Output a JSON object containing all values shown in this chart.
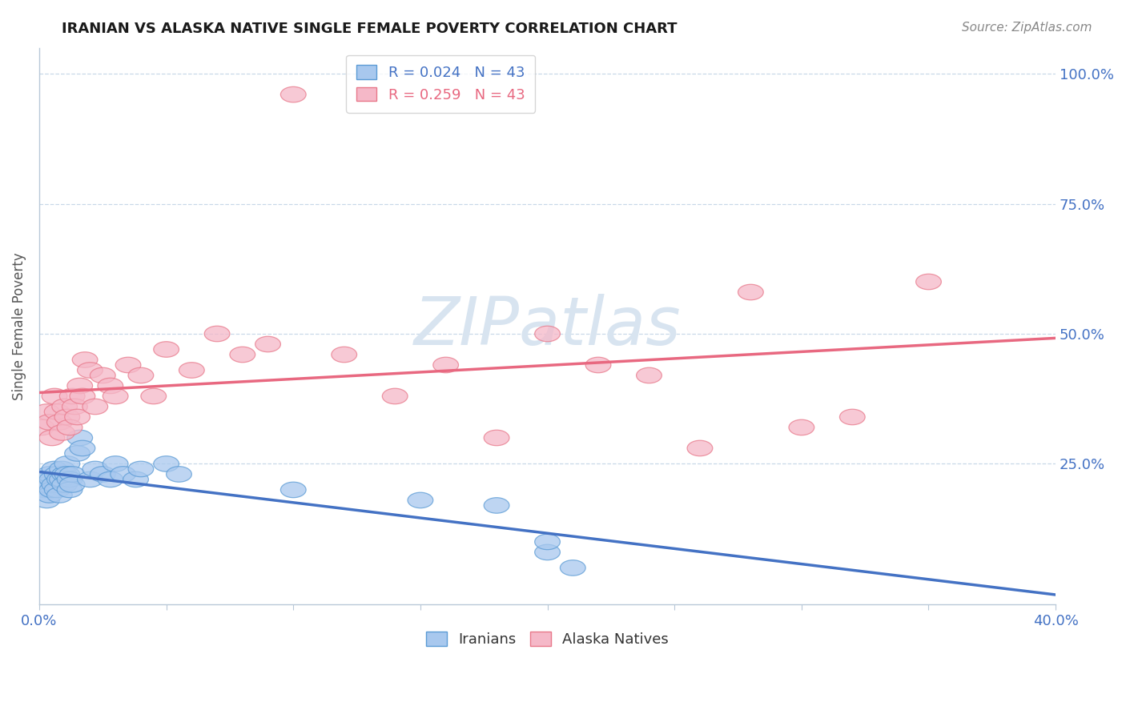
{
  "title": "IRANIAN VS ALASKA NATIVE SINGLE FEMALE POVERTY CORRELATION CHART",
  "source": "Source: ZipAtlas.com",
  "ylabel": "Single Female Poverty",
  "x_min": 0.0,
  "x_max": 0.4,
  "y_min": 0.0,
  "y_max": 1.0,
  "iranians_R": 0.024,
  "alaska_R": 0.259,
  "N": 43,
  "color_iranians_fill": "#A8C8EE",
  "color_iranians_edge": "#5B9BD5",
  "color_alaska_fill": "#F5B8C8",
  "color_alaska_edge": "#E8788A",
  "color_line_iranians": "#4472C4",
  "color_line_alaska": "#E86880",
  "color_text_blue": "#4472C4",
  "color_axis": "#B8C8D8",
  "color_grid": "#C8D8E8",
  "watermark_text": "ZIPatlas",
  "watermark_color": "#D8E4F0",
  "iranians_x": [
    0.001,
    0.002,
    0.003,
    0.003,
    0.004,
    0.004,
    0.005,
    0.005,
    0.006,
    0.006,
    0.007,
    0.007,
    0.008,
    0.008,
    0.009,
    0.009,
    0.01,
    0.01,
    0.011,
    0.011,
    0.012,
    0.012,
    0.013,
    0.013,
    0.015,
    0.016,
    0.017,
    0.02,
    0.022,
    0.025,
    0.028,
    0.03,
    0.033,
    0.038,
    0.04,
    0.05,
    0.055,
    0.1,
    0.15,
    0.18,
    0.2,
    0.2,
    0.21
  ],
  "iranians_y": [
    0.22,
    0.2,
    0.18,
    0.21,
    0.23,
    0.19,
    0.22,
    0.2,
    0.24,
    0.21,
    0.23,
    0.2,
    0.22,
    0.19,
    0.24,
    0.22,
    0.23,
    0.21,
    0.25,
    0.23,
    0.22,
    0.2,
    0.23,
    0.21,
    0.27,
    0.3,
    0.28,
    0.22,
    0.24,
    0.23,
    0.22,
    0.25,
    0.23,
    0.22,
    0.24,
    0.25,
    0.23,
    0.2,
    0.18,
    0.17,
    0.08,
    0.1,
    0.05
  ],
  "alaska_x": [
    0.001,
    0.003,
    0.004,
    0.005,
    0.006,
    0.007,
    0.008,
    0.009,
    0.01,
    0.011,
    0.012,
    0.013,
    0.014,
    0.015,
    0.016,
    0.017,
    0.018,
    0.02,
    0.022,
    0.025,
    0.028,
    0.03,
    0.035,
    0.04,
    0.045,
    0.05,
    0.06,
    0.07,
    0.08,
    0.09,
    0.1,
    0.12,
    0.14,
    0.16,
    0.18,
    0.2,
    0.22,
    0.24,
    0.26,
    0.28,
    0.3,
    0.32,
    0.35
  ],
  "alaska_y": [
    0.32,
    0.35,
    0.33,
    0.3,
    0.38,
    0.35,
    0.33,
    0.31,
    0.36,
    0.34,
    0.32,
    0.38,
    0.36,
    0.34,
    0.4,
    0.38,
    0.45,
    0.43,
    0.36,
    0.42,
    0.4,
    0.38,
    0.44,
    0.42,
    0.38,
    0.47,
    0.43,
    0.5,
    0.46,
    0.48,
    0.96,
    0.46,
    0.38,
    0.44,
    0.3,
    0.5,
    0.44,
    0.42,
    0.28,
    0.58,
    0.32,
    0.34,
    0.6
  ]
}
